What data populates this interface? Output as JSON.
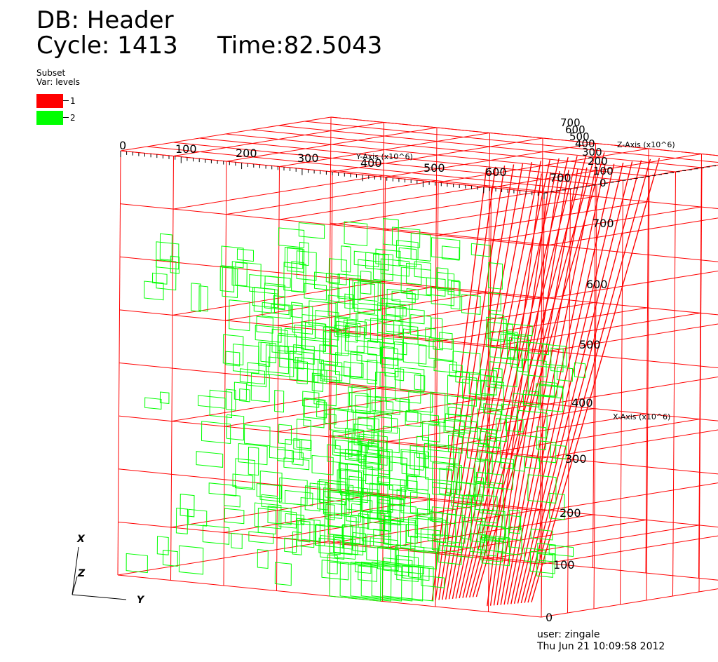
{
  "header": {
    "db_label": "DB: Header",
    "cycle_label": "Cycle: 1413",
    "time_label": "Time:82.5043"
  },
  "legend": {
    "title": "Subset",
    "var_label": "Var: levels",
    "items": [
      {
        "label": "1",
        "color": "#ff0000"
      },
      {
        "label": "2",
        "color": "#00ff00"
      }
    ]
  },
  "axes": {
    "y_axis": {
      "title": "Y-Axis (x10^6)",
      "ticks": [
        "0",
        "100",
        "200",
        "300",
        "400",
        "500",
        "600",
        "700"
      ]
    },
    "z_axis": {
      "title": "Z-Axis (x10^6)",
      "ticks": [
        "0",
        "100",
        "200",
        "300",
        "400",
        "500",
        "600",
        "700"
      ]
    },
    "x_axis": {
      "title": "X-Axis (x10^6)",
      "ticks": [
        "0",
        "100",
        "200",
        "300",
        "400",
        "500",
        "600",
        "700"
      ]
    }
  },
  "triad": {
    "x": "X",
    "y": "Y",
    "z": "Z"
  },
  "footer": {
    "user": "user: zingale",
    "date": "Thu Jun 21 10:09:58 2012"
  },
  "colors": {
    "level1": "#ff0000",
    "level2": "#00ff00"
  }
}
